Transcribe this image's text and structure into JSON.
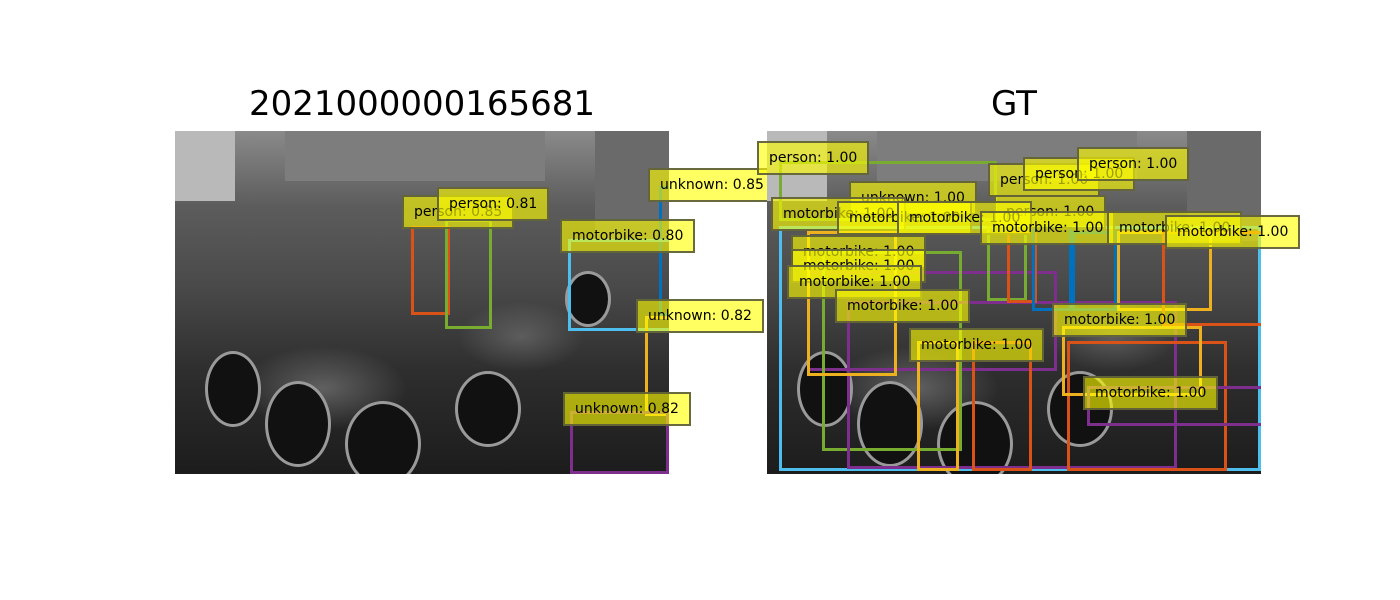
{
  "panels": {
    "left": {
      "title": "2021000000165681",
      "boxes": [
        {
          "label": "person: 0.85",
          "color": "#d95319"
        },
        {
          "label": "person: 0.81",
          "color": "#77ac30"
        },
        {
          "label": "unknown: 0.85",
          "color": "#0072bd"
        },
        {
          "label": "motorbike: 0.80",
          "color": "#4dbeee"
        },
        {
          "label": "unknown: 0.82",
          "color": "#edb120"
        },
        {
          "label": "unknown: 0.82",
          "color": "#7e2f8e"
        }
      ]
    },
    "right": {
      "title": "GT",
      "labels": [
        "person: 1.00",
        "person: 1.00",
        "person: 1.00",
        "person: 1.00",
        "person: 1.00",
        "unknown: 1.00",
        "motorbike: 1.00",
        "motorbike: 1.00",
        "motorbike: 1.00",
        "motorbike: 1.00",
        "motorbike: 1.00",
        "motorbike: 1.00",
        "motorbike: 1.00",
        "motorbike: 1.00",
        "motorbike: 1.00",
        "motorbike: 1.00",
        "motorbike: 1.00",
        "motorbike: 1.00",
        "motorbike: 1.00"
      ],
      "colors": {
        "orange": "#d95319",
        "green": "#77ac30",
        "blue": "#0072bd",
        "lightblue": "#4dbeee",
        "yellow": "#edb120",
        "purple": "#7e2f8e"
      }
    }
  }
}
